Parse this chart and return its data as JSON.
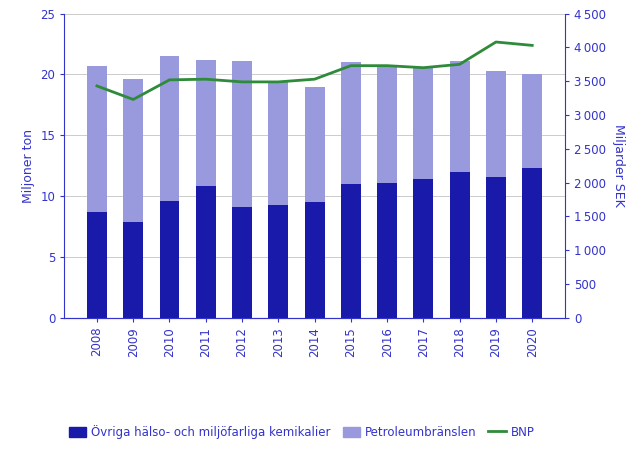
{
  "years": [
    2008,
    2009,
    2010,
    2011,
    2012,
    2013,
    2014,
    2015,
    2016,
    2017,
    2018,
    2019,
    2020
  ],
  "ovriga": [
    8.7,
    7.9,
    9.6,
    10.8,
    9.1,
    9.3,
    9.5,
    11.0,
    11.1,
    11.4,
    12.0,
    11.6,
    12.3
  ],
  "petroleum": [
    12.0,
    11.7,
    11.9,
    10.4,
    12.0,
    10.1,
    9.5,
    10.0,
    9.7,
    9.2,
    9.1,
    8.7,
    7.7
  ],
  "bnp": [
    3430,
    3230,
    3520,
    3530,
    3490,
    3490,
    3530,
    3730,
    3730,
    3700,
    3750,
    4080,
    4030
  ],
  "color_ovriga": "#1a1aaa",
  "color_petroleum": "#9999dd",
  "color_bnp": "#2e8b3a",
  "left_ylabel": "Miljoner ton",
  "right_ylabel": "Miljarder SEK",
  "ylim_left": [
    0,
    25
  ],
  "ylim_right": [
    0,
    4500
  ],
  "yticks_left": [
    0,
    5,
    10,
    15,
    20,
    25
  ],
  "yticks_right": [
    0,
    500,
    1000,
    1500,
    2000,
    2500,
    3000,
    3500,
    4000,
    4500
  ],
  "legend_ovriga": "Övriga hälso- och miljöfarliga kemikalier",
  "legend_petroleum": "Petroleumbränslen",
  "legend_bnp": "BNP",
  "text_color": "#3333cc",
  "background_color": "#ffffff",
  "grid_color": "#cccccc"
}
